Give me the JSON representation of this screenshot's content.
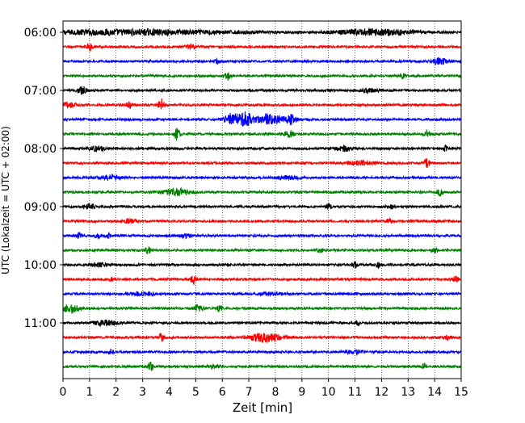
{
  "chart_data": {
    "type": "line",
    "title": "",
    "xlabel": "Zeit  [min]",
    "ylabel": "UTC (Lokalzeit = UTC + 02:00)",
    "xlim": [
      0,
      15
    ],
    "x_ticks": [
      0,
      1,
      2,
      3,
      4,
      5,
      6,
      7,
      8,
      9,
      10,
      11,
      12,
      13,
      14,
      15
    ],
    "x_tick_labels": [
      "0",
      "1",
      "2",
      "3",
      "4",
      "5",
      "6",
      "7",
      "8",
      "9",
      "10",
      "11",
      "12",
      "13",
      "14",
      "15"
    ],
    "vertical_grid": "dotted",
    "trace_interval_minutes": 15,
    "y_ticks": [
      "06:00",
      "07:00",
      "08:00",
      "09:00",
      "10:00",
      "11:00"
    ],
    "trace_colors": [
      "#000000",
      "#ff0000",
      "#0000ff",
      "#008000"
    ],
    "series": [
      {
        "start": "06:00",
        "color": "#000000",
        "events": [
          {
            "t": 2.5,
            "a": 0.5,
            "w": 4.0
          },
          {
            "t": 11.8,
            "a": 0.6,
            "w": 1.5
          }
        ]
      },
      {
        "start": "06:15",
        "color": "#ff0000",
        "events": [
          {
            "t": 1.0,
            "a": 0.7,
            "w": 0.1
          },
          {
            "t": 4.8,
            "a": 0.4,
            "w": 0.2
          }
        ]
      },
      {
        "start": "06:30",
        "color": "#0000ff",
        "events": [
          {
            "t": 5.8,
            "a": 0.5,
            "w": 0.1
          },
          {
            "t": 14.2,
            "a": 0.6,
            "w": 0.3
          }
        ]
      },
      {
        "start": "06:45",
        "color": "#008000",
        "events": [
          {
            "t": 6.2,
            "a": 0.8,
            "w": 0.1
          },
          {
            "t": 12.8,
            "a": 0.5,
            "w": 0.1
          }
        ]
      },
      {
        "start": "07:00",
        "color": "#000000",
        "events": [
          {
            "t": 0.7,
            "a": 1.0,
            "w": 0.15
          },
          {
            "t": 11.5,
            "a": 0.4,
            "w": 0.3
          }
        ]
      },
      {
        "start": "07:15",
        "color": "#ff0000",
        "events": [
          {
            "t": 3.7,
            "a": 1.2,
            "w": 0.12
          },
          {
            "t": 2.5,
            "a": 0.6,
            "w": 0.1
          },
          {
            "t": 0.2,
            "a": 0.5,
            "w": 0.3
          }
        ]
      },
      {
        "start": "07:30",
        "color": "#0000ff",
        "events": [
          {
            "t": 6.4,
            "a": 1.3,
            "w": 0.3
          },
          {
            "t": 6.9,
            "a": 1.5,
            "w": 0.2
          },
          {
            "t": 7.8,
            "a": 1.0,
            "w": 0.5
          },
          {
            "t": 8.6,
            "a": 0.9,
            "w": 0.2
          }
        ]
      },
      {
        "start": "07:45",
        "color": "#008000",
        "events": [
          {
            "t": 4.3,
            "a": 1.2,
            "w": 0.1
          },
          {
            "t": 8.5,
            "a": 0.6,
            "w": 0.2
          },
          {
            "t": 13.7,
            "a": 0.8,
            "w": 0.1
          }
        ]
      },
      {
        "start": "08:00",
        "color": "#000000",
        "events": [
          {
            "t": 1.3,
            "a": 0.5,
            "w": 0.3
          },
          {
            "t": 10.6,
            "a": 0.5,
            "w": 0.3
          },
          {
            "t": 14.4,
            "a": 0.6,
            "w": 0.1
          }
        ]
      },
      {
        "start": "08:15",
        "color": "#ff0000",
        "events": [
          {
            "t": 13.7,
            "a": 1.0,
            "w": 0.1
          },
          {
            "t": 11.2,
            "a": 0.4,
            "w": 0.5
          }
        ]
      },
      {
        "start": "08:30",
        "color": "#0000ff",
        "events": [
          {
            "t": 1.8,
            "a": 0.5,
            "w": 0.4
          },
          {
            "t": 8.5,
            "a": 0.3,
            "w": 0.5
          }
        ]
      },
      {
        "start": "08:45",
        "color": "#008000",
        "events": [
          {
            "t": 4.3,
            "a": 0.7,
            "w": 0.5
          },
          {
            "t": 14.2,
            "a": 1.0,
            "w": 0.1
          }
        ]
      },
      {
        "start": "09:00",
        "color": "#000000",
        "events": [
          {
            "t": 1.0,
            "a": 0.5,
            "w": 0.2
          },
          {
            "t": 10.0,
            "a": 0.5,
            "w": 0.1
          },
          {
            "t": 12.4,
            "a": 0.5,
            "w": 0.1
          }
        ]
      },
      {
        "start": "09:15",
        "color": "#ff0000",
        "events": [
          {
            "t": 2.5,
            "a": 0.4,
            "w": 0.3
          },
          {
            "t": 12.3,
            "a": 0.5,
            "w": 0.1
          }
        ]
      },
      {
        "start": "09:30",
        "color": "#0000ff",
        "events": [
          {
            "t": 0.6,
            "a": 0.6,
            "w": 0.1
          },
          {
            "t": 1.3,
            "a": 0.5,
            "w": 0.1
          },
          {
            "t": 1.7,
            "a": 0.5,
            "w": 0.1
          },
          {
            "t": 4.6,
            "a": 0.4,
            "w": 0.2
          }
        ]
      },
      {
        "start": "09:45",
        "color": "#008000",
        "events": [
          {
            "t": 3.2,
            "a": 0.8,
            "w": 0.1
          },
          {
            "t": 9.7,
            "a": 0.5,
            "w": 0.1
          },
          {
            "t": 14.0,
            "a": 0.5,
            "w": 0.1
          }
        ]
      },
      {
        "start": "10:00",
        "color": "#000000",
        "events": [
          {
            "t": 1.3,
            "a": 0.4,
            "w": 0.3
          },
          {
            "t": 11.0,
            "a": 0.6,
            "w": 0.1
          },
          {
            "t": 11.9,
            "a": 0.5,
            "w": 0.1
          }
        ]
      },
      {
        "start": "10:15",
        "color": "#ff0000",
        "events": [
          {
            "t": 4.9,
            "a": 1.0,
            "w": 0.1
          },
          {
            "t": 1.8,
            "a": 0.4,
            "w": 0.1
          },
          {
            "t": 14.8,
            "a": 0.6,
            "w": 0.1
          }
        ]
      },
      {
        "start": "10:30",
        "color": "#0000ff",
        "events": [
          {
            "t": 3.0,
            "a": 0.3,
            "w": 0.5
          },
          {
            "t": 7.9,
            "a": 0.3,
            "w": 0.5
          }
        ]
      },
      {
        "start": "10:45",
        "color": "#008000",
        "events": [
          {
            "t": 0.3,
            "a": 0.9,
            "w": 0.3
          },
          {
            "t": 5.1,
            "a": 0.7,
            "w": 0.2
          },
          {
            "t": 5.9,
            "a": 0.7,
            "w": 0.1
          }
        ]
      },
      {
        "start": "11:00",
        "color": "#000000",
        "events": [
          {
            "t": 1.6,
            "a": 0.5,
            "w": 0.4
          },
          {
            "t": 11.1,
            "a": 0.5,
            "w": 0.1
          }
        ]
      },
      {
        "start": "11:15",
        "color": "#ff0000",
        "events": [
          {
            "t": 7.6,
            "a": 0.9,
            "w": 0.6
          },
          {
            "t": 3.7,
            "a": 0.8,
            "w": 0.1
          },
          {
            "t": 14.5,
            "a": 0.6,
            "w": 0.1
          }
        ]
      },
      {
        "start": "11:30",
        "color": "#0000ff",
        "events": [
          {
            "t": 1.8,
            "a": 0.5,
            "w": 0.1
          },
          {
            "t": 11.0,
            "a": 0.4,
            "w": 0.3
          }
        ]
      },
      {
        "start": "11:45",
        "color": "#008000",
        "events": [
          {
            "t": 3.3,
            "a": 0.9,
            "w": 0.1
          },
          {
            "t": 13.6,
            "a": 0.6,
            "w": 0.1
          },
          {
            "t": 5.7,
            "a": 0.4,
            "w": 0.2
          }
        ]
      }
    ]
  }
}
